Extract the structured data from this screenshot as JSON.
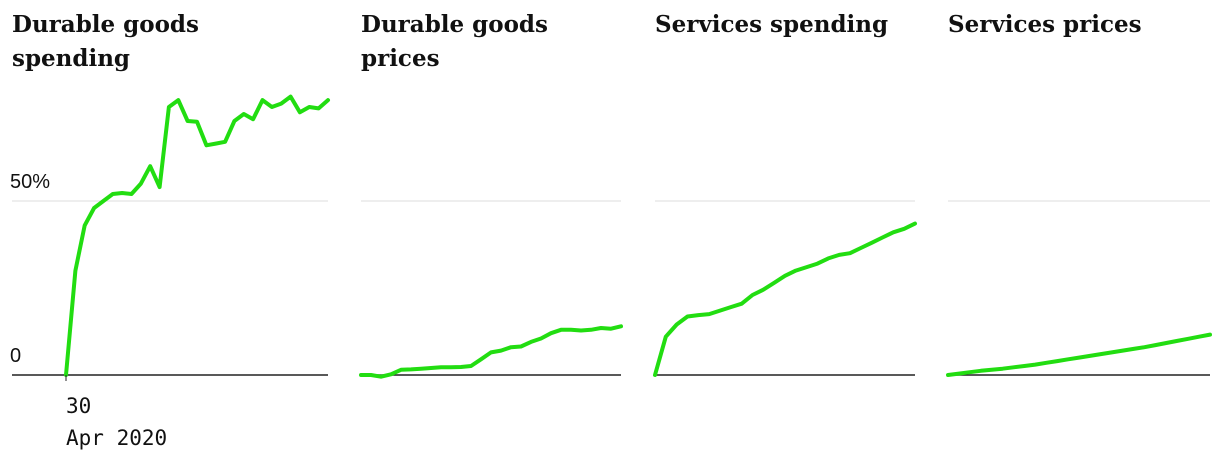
{
  "colors": {
    "line": "#22dd11",
    "grid": "#dddddd",
    "axis": "#222222"
  },
  "chart_data": [
    {
      "type": "line",
      "title": "Durable goods spending",
      "title_lines": [
        "Durable goods",
        "spending"
      ],
      "ylim": [
        0,
        100
      ],
      "yticks": [
        {
          "value": 0,
          "label": "0"
        },
        {
          "value": 50,
          "label": "50%"
        }
      ],
      "x_start_label": "30",
      "x_start_sublabel": "Apr 2020",
      "values": [
        0,
        30,
        43,
        48,
        50,
        52,
        52.3,
        52,
        55,
        60,
        54,
        77,
        79,
        73,
        72.8,
        66,
        66.5,
        67,
        73,
        75,
        73.5,
        79,
        77,
        78,
        80,
        75.5,
        77,
        76.6,
        79
      ]
    },
    {
      "type": "line",
      "title": "Durable goods prices",
      "title_lines": [
        "Durable goods",
        "prices"
      ],
      "ylim": [
        0,
        100
      ],
      "values": [
        0,
        0,
        -0.5,
        0.2,
        1.5,
        1.6,
        1.8,
        2,
        2.2,
        2.2,
        2.3,
        2.6,
        4.5,
        6.5,
        7,
        8,
        8.2,
        9.5,
        10.5,
        12,
        13,
        13,
        12.8,
        13,
        13.5,
        13.3,
        14
      ]
    },
    {
      "type": "line",
      "title": "Services spending",
      "title_lines": [
        "Services spending"
      ],
      "ylim": [
        0,
        100
      ],
      "values": [
        0,
        11,
        14.5,
        16.8,
        17.2,
        17.5,
        18.5,
        19.5,
        20.5,
        23,
        24.5,
        26.5,
        28.5,
        30,
        31,
        32,
        33.5,
        34.5,
        35,
        36.5,
        38,
        39.5,
        41,
        42,
        43.5
      ]
    },
    {
      "type": "line",
      "title": "Services prices",
      "title_lines": [
        "Services prices"
      ],
      "ylim": [
        0,
        100
      ],
      "values": [
        0,
        0.4,
        0.8,
        1.2,
        1.5,
        1.8,
        2.2,
        2.6,
        3,
        3.5,
        4,
        4.5,
        5,
        5.5,
        6,
        6.5,
        7,
        7.5,
        8,
        8.6,
        9.2,
        9.8,
        10.4,
        11,
        11.6
      ]
    }
  ]
}
